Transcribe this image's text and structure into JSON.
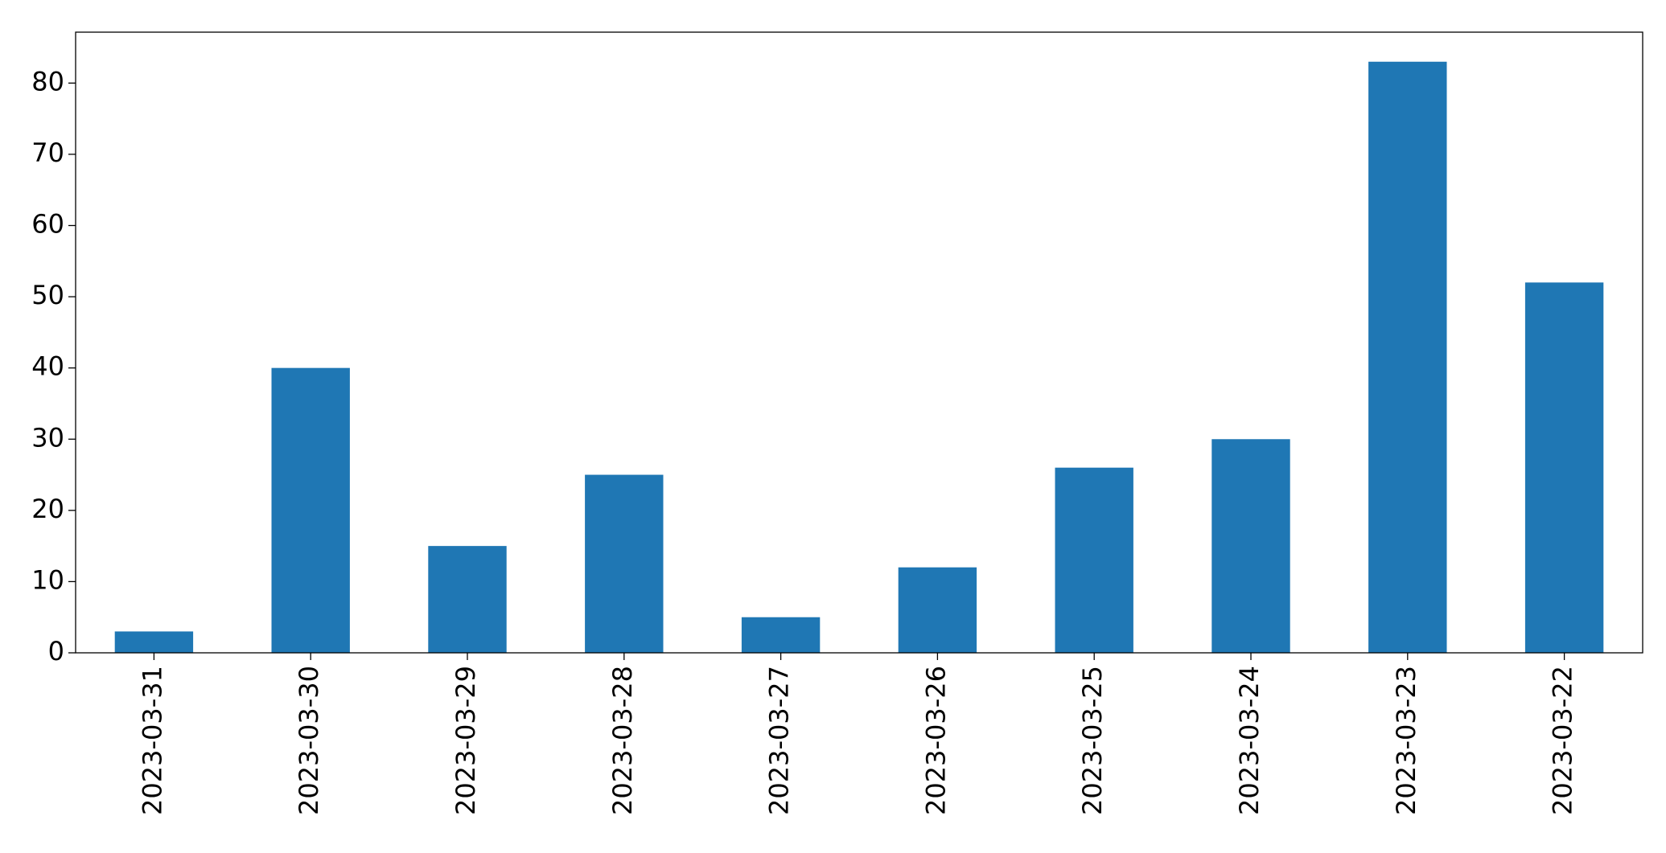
{
  "chart_data": {
    "type": "bar",
    "categories": [
      "2023-03-31",
      "2023-03-30",
      "2023-03-29",
      "2023-03-28",
      "2023-03-27",
      "2023-03-26",
      "2023-03-25",
      "2023-03-24",
      "2023-03-23",
      "2023-03-22"
    ],
    "values": [
      3,
      40,
      15,
      25,
      5,
      12,
      26,
      30,
      83,
      52
    ],
    "color": "#1f77b4",
    "ylim": [
      0,
      87.15
    ],
    "yticks": [
      0,
      10,
      20,
      30,
      40,
      50,
      60,
      70,
      80
    ],
    "grid": false
  }
}
